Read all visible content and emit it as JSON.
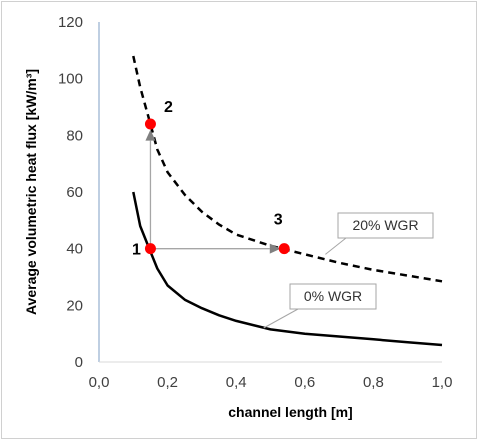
{
  "chart_data": {
    "type": "line",
    "xlabel": "channel  length [m]",
    "ylabel": "Average volumetric  heat  flux [kW/m³]",
    "xlim": [
      0,
      1
    ],
    "ylim": [
      0,
      120
    ],
    "x_ticks": [
      "0,0",
      "0,2",
      "0,4",
      "0,6",
      "0,8",
      "1,0"
    ],
    "y_ticks": [
      "0",
      "20",
      "40",
      "60",
      "80",
      "100",
      "120"
    ],
    "grid": false,
    "series": [
      {
        "name": "0% WGR",
        "style": "solid",
        "color": "#000000",
        "x": [
          0.1,
          0.12,
          0.15,
          0.17,
          0.2,
          0.25,
          0.3,
          0.35,
          0.4,
          0.5,
          0.6,
          0.7,
          0.8,
          0.9,
          1.0
        ],
        "y": [
          60,
          48,
          39,
          33,
          27,
          22,
          19,
          16.5,
          14.5,
          11.5,
          10,
          9,
          8,
          7,
          6
        ]
      },
      {
        "name": "20% WGR",
        "style": "dashed",
        "color": "#000000",
        "x": [
          0.1,
          0.12,
          0.15,
          0.17,
          0.2,
          0.25,
          0.3,
          0.35,
          0.4,
          0.5,
          0.6,
          0.7,
          0.8,
          0.9,
          1.0
        ],
        "y": [
          108,
          97,
          84,
          75,
          67,
          59,
          53,
          48.5,
          45,
          41,
          38,
          35,
          32.5,
          30.5,
          28.5
        ]
      }
    ],
    "points": [
      {
        "label": "1",
        "x": 0.15,
        "y": 40
      },
      {
        "label": "2",
        "x": 0.15,
        "y": 84
      },
      {
        "label": "3",
        "x": 0.54,
        "y": 40
      }
    ],
    "arrows": [
      {
        "from": [
          0.15,
          40
        ],
        "to": [
          0.15,
          82
        ]
      },
      {
        "from": [
          0.15,
          40
        ],
        "to": [
          0.53,
          40
        ]
      }
    ],
    "callouts": [
      {
        "text": "20% WGR",
        "series": "20% WGR",
        "anchor": [
          0.66,
          38
        ]
      },
      {
        "text": "0% WGR",
        "series": "0% WGR",
        "anchor": [
          0.48,
          12
        ]
      }
    ],
    "colors": {
      "marker": "#ff0000",
      "arrow": "#a6a6a6",
      "axis": "#7f9fc4"
    }
  }
}
